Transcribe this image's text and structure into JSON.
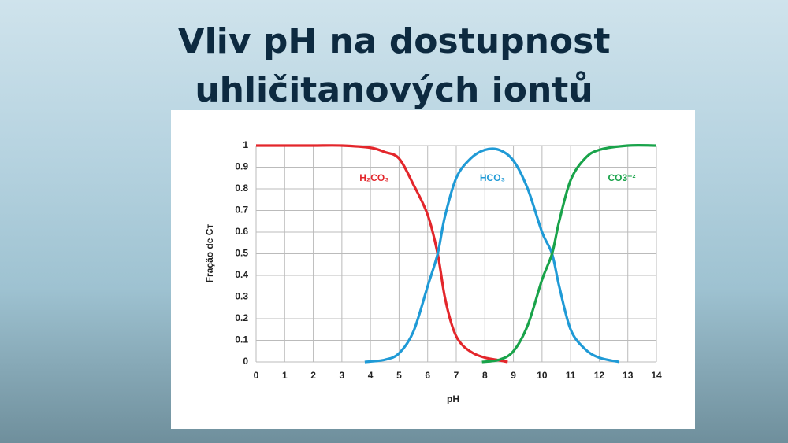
{
  "slide_title": "Vliv pH na dostupnost uhličitanových iontů",
  "chart_data": {
    "type": "line",
    "xlabel": "pH",
    "ylabel": "Fração de Cᴛ",
    "xlim": [
      0,
      14
    ],
    "ylim": [
      0,
      1
    ],
    "xticks": [
      0,
      1,
      2,
      3,
      4,
      5,
      6,
      7,
      8,
      9,
      10,
      11,
      12,
      13,
      14
    ],
    "yticks": [
      0,
      0.1,
      0.2,
      0.3,
      0.4,
      0.5,
      0.6,
      0.7,
      0.8,
      0.9,
      1
    ],
    "grid": true,
    "series": [
      {
        "name": "H₂CO₃",
        "color": "#e3262b",
        "x": [
          0,
          1,
          2,
          3,
          4,
          4.5,
          5,
          5.5,
          6,
          6.35,
          6.6,
          6.9,
          7.2,
          7.6,
          8,
          8.4,
          8.8
        ],
        "values": [
          1,
          1,
          1,
          1,
          0.99,
          0.97,
          0.94,
          0.82,
          0.68,
          0.5,
          0.3,
          0.15,
          0.08,
          0.04,
          0.02,
          0.01,
          0
        ]
      },
      {
        "name": "HCO₃",
        "color": "#1f9ad6",
        "x": [
          3.8,
          4.5,
          5,
          5.5,
          6,
          6.35,
          6.6,
          7,
          7.5,
          8,
          8.5,
          9,
          9.5,
          10,
          10.35,
          10.6,
          11,
          11.5,
          12,
          12.7
        ],
        "values": [
          0,
          0.01,
          0.04,
          0.14,
          0.35,
          0.5,
          0.67,
          0.85,
          0.94,
          0.98,
          0.98,
          0.93,
          0.8,
          0.6,
          0.5,
          0.35,
          0.15,
          0.06,
          0.02,
          0
        ]
      },
      {
        "name": "CO3⁻²",
        "color": "#19a34a",
        "x": [
          7.9,
          8.5,
          9,
          9.5,
          10,
          10.35,
          10.6,
          11,
          11.5,
          12,
          13,
          14
        ],
        "values": [
          0,
          0.01,
          0.05,
          0.17,
          0.38,
          0.5,
          0.65,
          0.84,
          0.94,
          0.98,
          1,
          1
        ]
      }
    ]
  }
}
